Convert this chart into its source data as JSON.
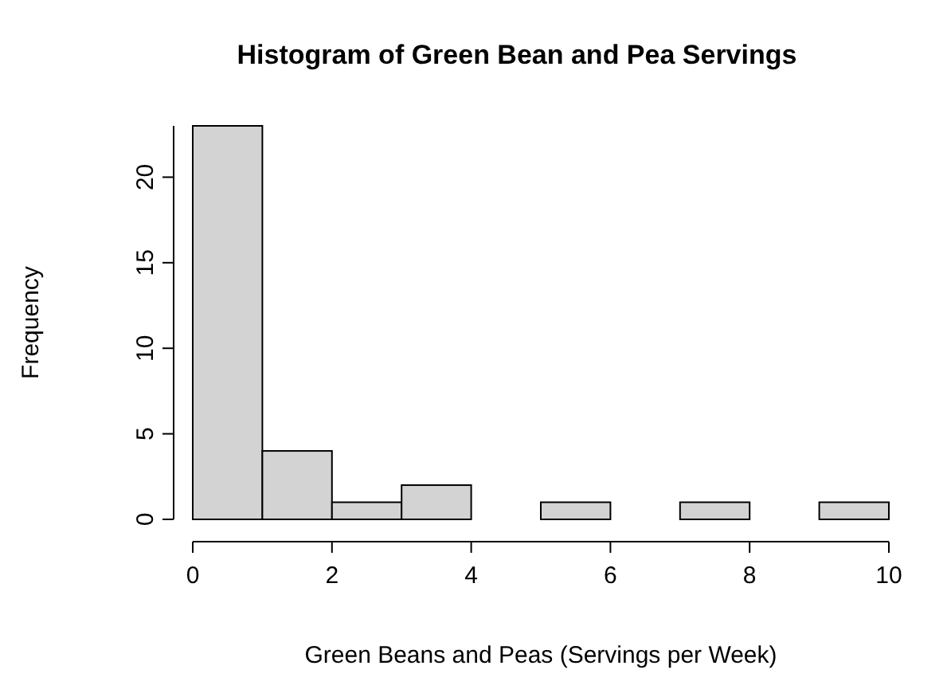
{
  "chart_data": {
    "type": "histogram",
    "title": "Histogram of Green Bean and Pea Servings",
    "xlabel": "Green Beans and Peas (Servings per Week)",
    "ylabel": "Frequency",
    "bins": [
      0,
      1,
      2,
      3,
      4,
      5,
      6,
      7,
      8,
      9,
      10
    ],
    "values": [
      23,
      4,
      1,
      2,
      0,
      1,
      0,
      1,
      0,
      1
    ],
    "color": "#d3d3d3",
    "xlim": [
      0,
      10
    ],
    "xticks": [
      0,
      2,
      4,
      6,
      8,
      10
    ],
    "ylim": [
      0,
      23
    ],
    "yticks": [
      0,
      5,
      10,
      15,
      20
    ],
    "grid": false
  }
}
